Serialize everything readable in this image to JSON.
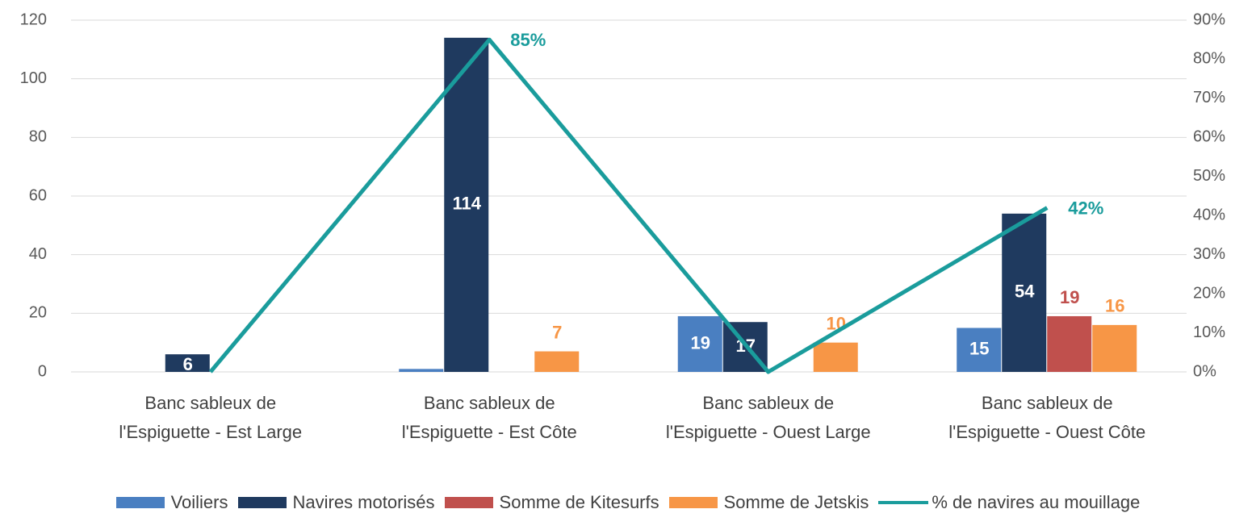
{
  "chart_data": {
    "type": "bar",
    "categories": [
      "Banc sableux de\nl'Espiguette - Est Large",
      "Banc sableux de\nl'Espiguette - Est Côte",
      "Banc sableux de\nl'Espiguette - Ouest Large",
      "Banc sableux de\nl'Espiguette - Ouest Côte"
    ],
    "series": [
      {
        "name": "Voiliers",
        "color": "#4a7fc1",
        "values": [
          0,
          1,
          19,
          15
        ],
        "value_labels": [
          null,
          null,
          "19",
          "15"
        ]
      },
      {
        "name": "Navires motorisés",
        "color": "#1f3a5f",
        "values": [
          6,
          114,
          17,
          54
        ],
        "value_labels": [
          "6",
          "114",
          "17",
          "54"
        ]
      },
      {
        "name": "Somme de Kitesurfs",
        "color": "#c0504d",
        "values": [
          0,
          0,
          0,
          19
        ],
        "value_labels": [
          null,
          null,
          null,
          "19"
        ]
      },
      {
        "name": "Somme de Jetskis",
        "color": "#f79646",
        "values": [
          0,
          7,
          10,
          16
        ],
        "value_labels": [
          null,
          "7",
          "10",
          "16"
        ]
      },
      {
        "name": "% de navires au mouillage",
        "type": "line",
        "axis": "y2",
        "color": "#1a9c9c",
        "values": [
          0,
          85,
          0,
          42
        ],
        "value_labels": [
          null,
          "85%",
          null,
          "42%"
        ]
      }
    ],
    "ylim": [
      0,
      120
    ],
    "yticks": [
      0,
      20,
      40,
      60,
      80,
      100,
      120
    ],
    "y2lim": [
      0,
      90
    ],
    "y2ticks": [
      {
        "value": 0,
        "label": "0%"
      },
      {
        "value": 10,
        "label": "10%"
      },
      {
        "value": 20,
        "label": "20%"
      },
      {
        "value": 30,
        "label": "30%"
      },
      {
        "value": 40,
        "label": "40%"
      },
      {
        "value": 50,
        "label": "50%"
      },
      {
        "value": 60,
        "label": "60%"
      },
      {
        "value": 70,
        "label": "70%"
      },
      {
        "value": 80,
        "label": "80%"
      },
      {
        "value": 90,
        "label": "90%"
      }
    ],
    "grid": true,
    "legend": "bottom"
  }
}
